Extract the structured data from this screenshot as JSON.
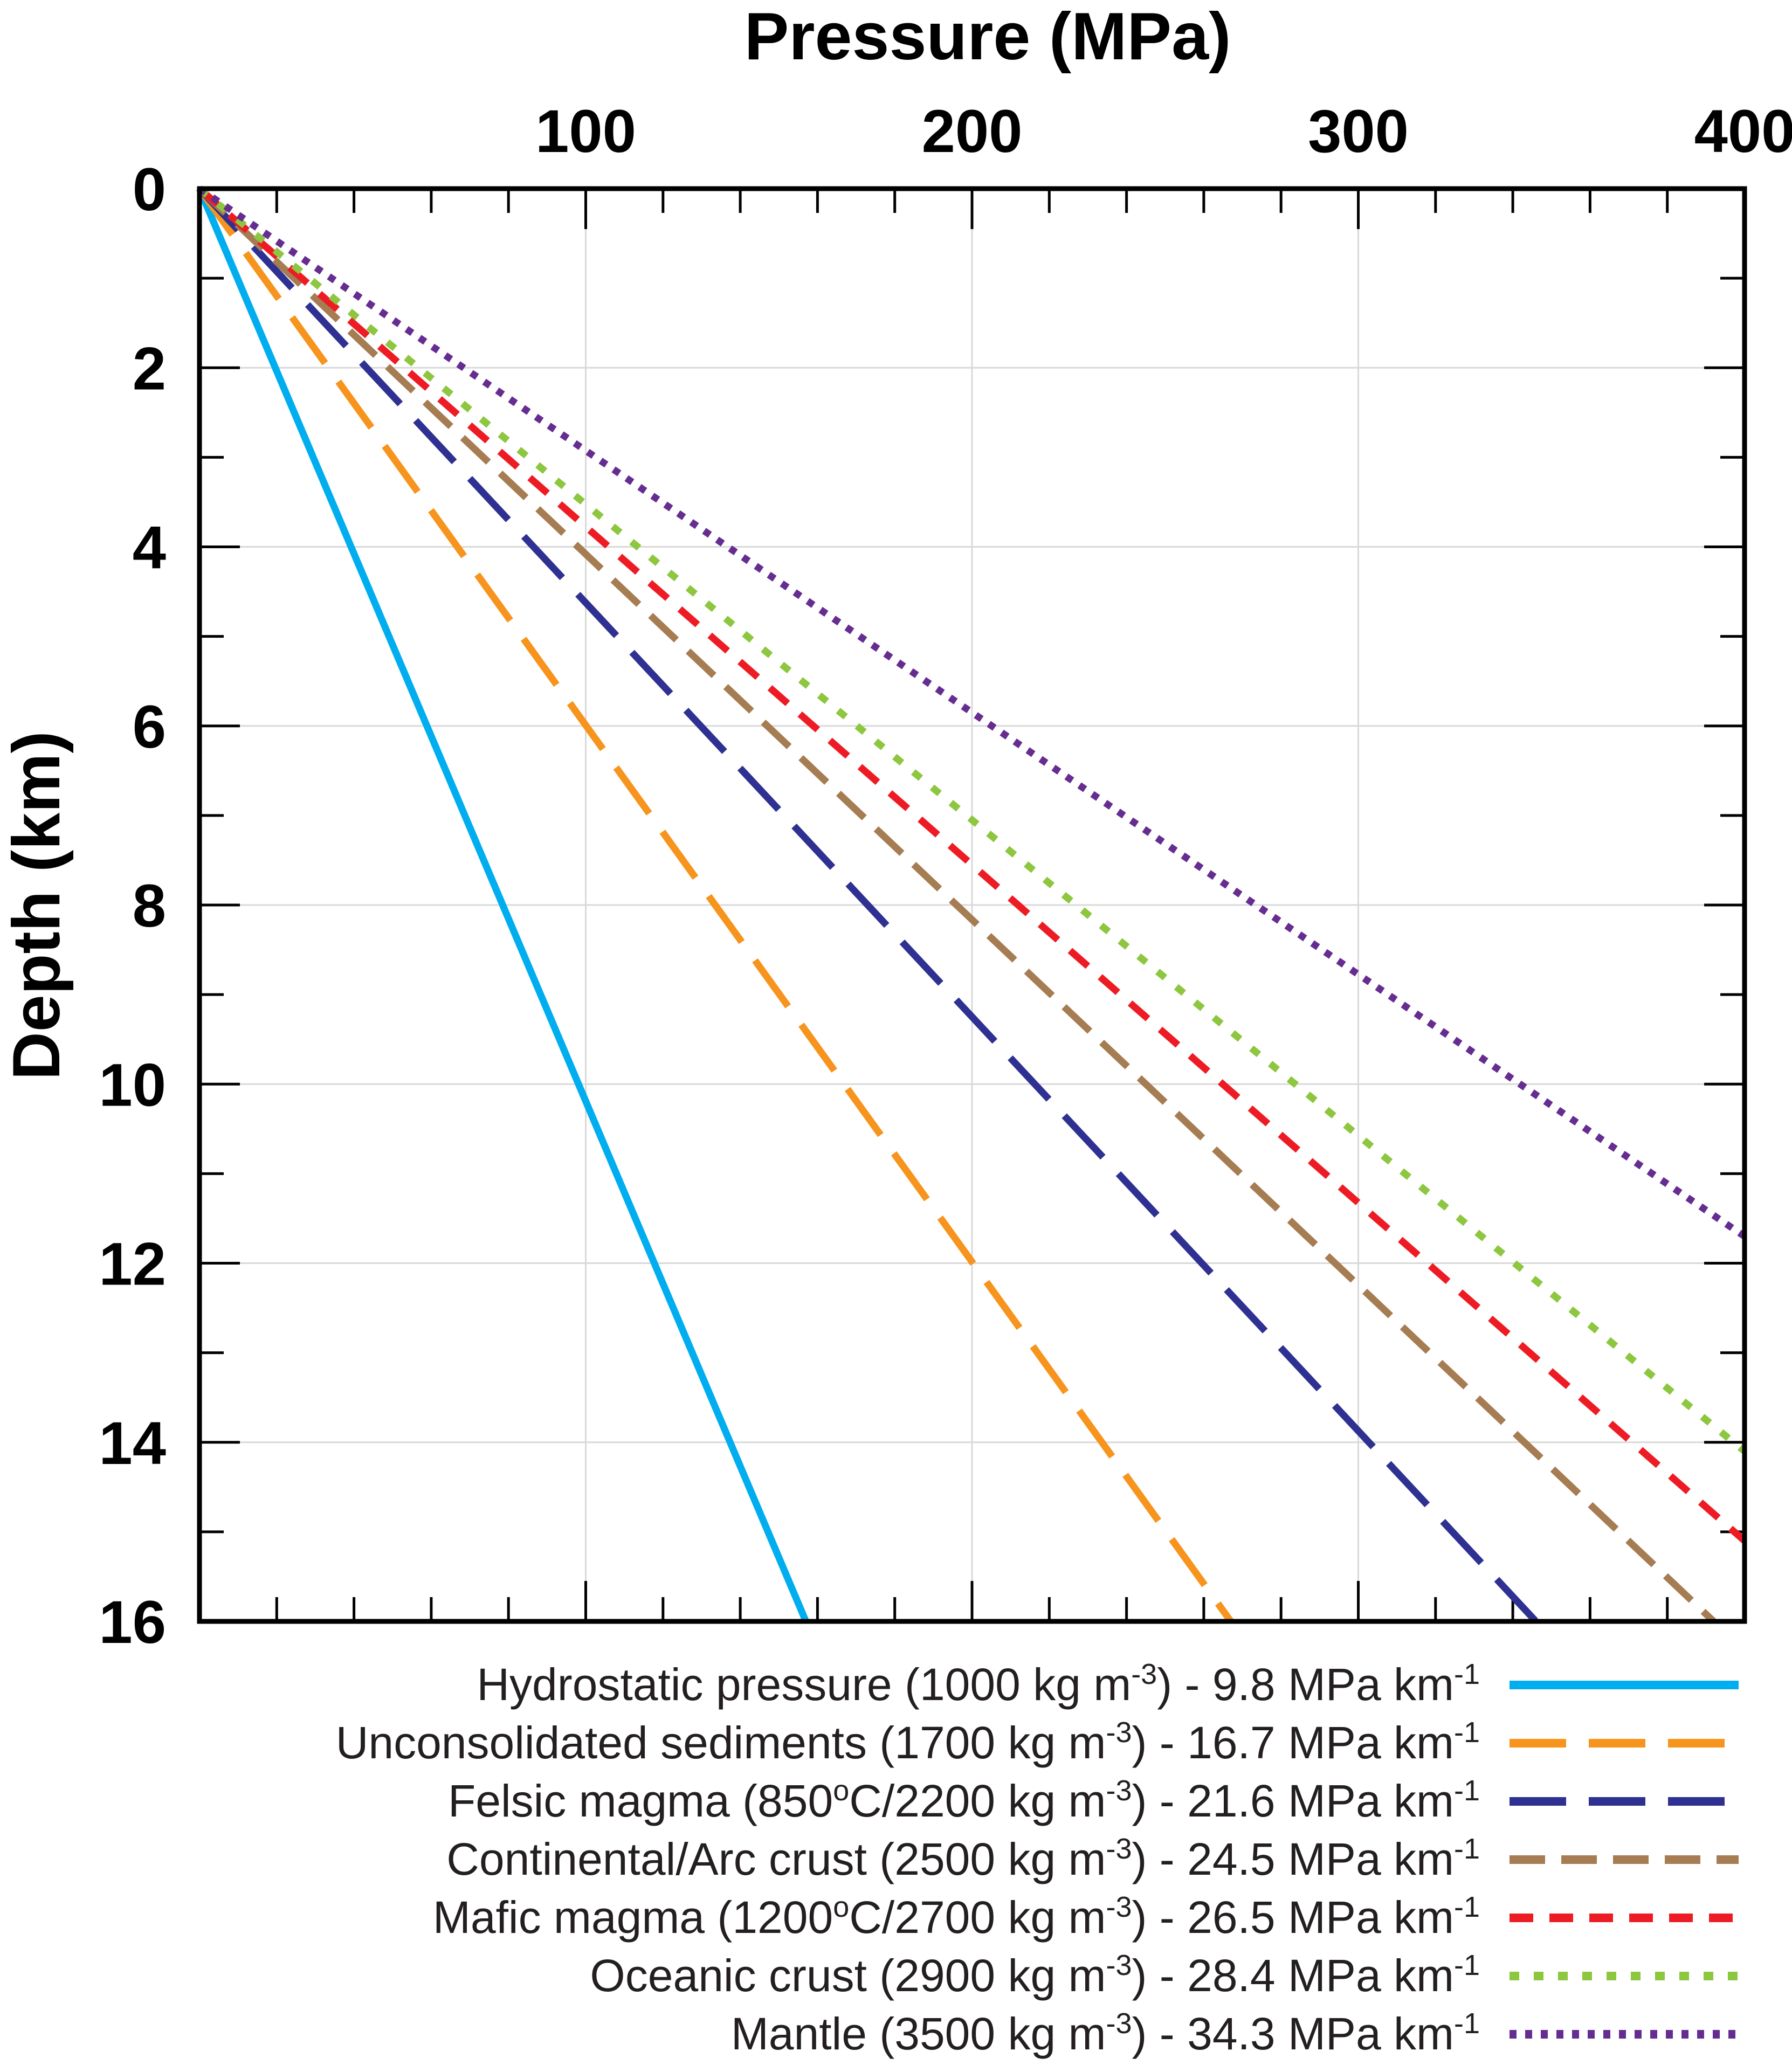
{
  "chart_data": {
    "type": "line",
    "title": "Pressure (MPa)",
    "xlabel": "Pressure (MPa)",
    "ylabel": "Depth (km)",
    "xlim": [
      0,
      400
    ],
    "ylim": [
      0,
      16
    ],
    "y_inverted": true,
    "x_axis_position": "top",
    "grid": true,
    "x_ticks": [
      100,
      200,
      300,
      400
    ],
    "x_tick_labels": [
      "100",
      "200",
      "300",
      "400"
    ],
    "y_ticks": [
      0,
      2,
      4,
      6,
      8,
      10,
      12,
      14,
      16
    ],
    "y_tick_labels": [
      "0",
      "2",
      "4",
      "6",
      "8",
      "10",
      "12",
      "14",
      "16"
    ],
    "legend_position": "bottom",
    "series": [
      {
        "name": "Hydrostatic pressure",
        "legend_pre": "Hydrostatic pressure (1000 kg m",
        "legend_sup1": "-3",
        "legend_mid": ") - 9.8 MPa km",
        "legend_sup2": "-1",
        "density_kg_m3": 1000,
        "gradient_MPa_per_km": 9.8,
        "color": "#00aeef",
        "style": "solid",
        "points": [
          [
            0,
            0
          ],
          [
            157,
            16
          ]
        ]
      },
      {
        "name": "Unconsolidated sediments",
        "legend_pre": "Unconsolidated sediments (1700 kg m",
        "legend_sup1": "-3",
        "legend_mid": ") - 16.7 MPa km",
        "legend_sup2": "-1",
        "density_kg_m3": 1700,
        "gradient_MPa_per_km": 16.7,
        "color": "#f7941d",
        "style": "long-dash",
        "points": [
          [
            0,
            0
          ],
          [
            267,
            16
          ]
        ]
      },
      {
        "name": "Felsic magma",
        "legend_pre": "Felsic magma (850",
        "legend_sup1": "o",
        "legend_mid": "C/2200 kg m",
        "legend_sup2": "-3",
        "legend_post": ") - 21.6 MPa km",
        "legend_sup3": "-1",
        "density_kg_m3": 2200,
        "gradient_MPa_per_km": 21.6,
        "color": "#2e3192",
        "style": "long-dash",
        "points": [
          [
            0,
            0
          ],
          [
            346,
            16
          ]
        ]
      },
      {
        "name": "Continental/Arc crust",
        "legend_pre": "Continental/Arc crust (2500 kg m",
        "legend_sup1": "-3",
        "legend_mid": ") - 24.5 MPa km",
        "legend_sup2": "-1",
        "density_kg_m3": 2500,
        "gradient_MPa_per_km": 24.5,
        "color": "#a67c52",
        "style": "medium-dash",
        "points": [
          [
            0,
            0
          ],
          [
            392,
            16
          ]
        ]
      },
      {
        "name": "Mafic magma",
        "legend_pre": "Mafic magma (1200",
        "legend_sup1": "o",
        "legend_mid": "C/2700 kg m",
        "legend_sup2": "-3",
        "legend_post": ") - 26.5 MPa km",
        "legend_sup3": "-1",
        "density_kg_m3": 2700,
        "gradient_MPa_per_km": 26.5,
        "color": "#ed1c24",
        "style": "short-dash",
        "points": [
          [
            0,
            0
          ],
          [
            400,
            15.1
          ]
        ]
      },
      {
        "name": "Oceanic crust",
        "legend_pre": "Oceanic crust (2900 kg m",
        "legend_sup1": "-3",
        "legend_mid": ") - 28.4 MPa km",
        "legend_sup2": "-1",
        "density_kg_m3": 2900,
        "gradient_MPa_per_km": 28.4,
        "color": "#8dc63f",
        "style": "dotted",
        "points": [
          [
            0,
            0
          ],
          [
            400,
            14.1
          ]
        ]
      },
      {
        "name": "Mantle",
        "legend_pre": "Mantle (3500 kg m",
        "legend_sup1": "-3",
        "legend_mid": ") - 34.3 MPa km",
        "legend_sup2": "-1",
        "density_kg_m3": 3500,
        "gradient_MPa_per_km": 34.3,
        "color": "#662d91",
        "style": "fine-dotted",
        "points": [
          [
            0,
            0
          ],
          [
            400,
            11.7
          ]
        ]
      }
    ]
  }
}
